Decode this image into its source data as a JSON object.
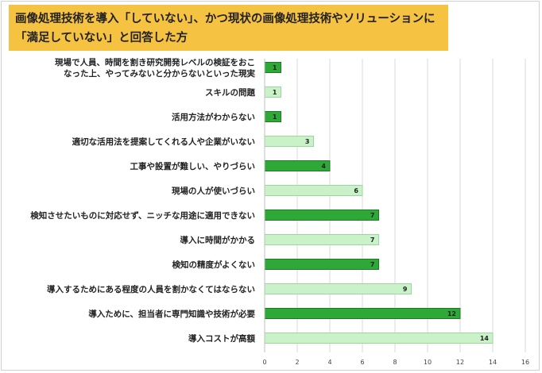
{
  "chart_data": {
    "type": "bar",
    "orientation": "horizontal",
    "title": "画像処理技術を導入「していない」、かつ現状の画像処理技術やソリューションに「満足していない」と回答した方",
    "categories": [
      "現場で人員、時間を割き研究開発レベルの検証をおこなった上、やってみないと分からないといった現実",
      "スキルの問題",
      "活用方法がわからない",
      "適切な活用法を提案してくれる人や企業がいない",
      "工事や設置が難しい、やりづらい",
      "現場の人が使いづらい",
      "検知させたいものに対応せず、ニッチな用途に適用できない",
      "導入に時間がかかる",
      "検知の精度がよくない",
      "導入するためにある程度の人員を割かなくてはならない",
      "導入ために、担当者に専門知識や技術が必要",
      "導入コストが高額"
    ],
    "category_lines": [
      [
        "現場で人員、時間を割き研究開発レベルの検証をおこ",
        "なった上、やってみないと分からないといった現実"
      ],
      [
        "スキルの問題"
      ],
      [
        "活用方法がわからない"
      ],
      [
        "適切な活用法を提案してくれる人や企業がいない"
      ],
      [
        "工事や設置が難しい、やりづらい"
      ],
      [
        "現場の人が使いづらい"
      ],
      [
        "検知させたいものに対応せず、ニッチな用途に適用できない"
      ],
      [
        "導入に時間がかかる"
      ],
      [
        "検知の精度がよくない"
      ],
      [
        "導入するためにある程度の人員を割かなくてはならない"
      ],
      [
        "導入ために、担当者に専門知識や技術が必要"
      ],
      [
        "導入コストが高額"
      ]
    ],
    "values": [
      1,
      1,
      1,
      3,
      4,
      6,
      7,
      7,
      7,
      9,
      12,
      14
    ],
    "highlight": [
      true,
      false,
      true,
      false,
      true,
      false,
      true,
      false,
      true,
      false,
      true,
      false
    ],
    "xlim": [
      0,
      16
    ],
    "xticks": [
      0,
      2,
      4,
      6,
      8,
      10,
      12,
      14,
      16
    ],
    "grid": true,
    "legend": "none",
    "colors": {
      "highlight_fill": "#2ea836",
      "highlight_edge": "#1e7a26",
      "normal_fill": "#c9f2c9",
      "normal_edge": "#9dd69d",
      "grid": "#d9d9d9",
      "title_bg": "#f5c242"
    }
  }
}
